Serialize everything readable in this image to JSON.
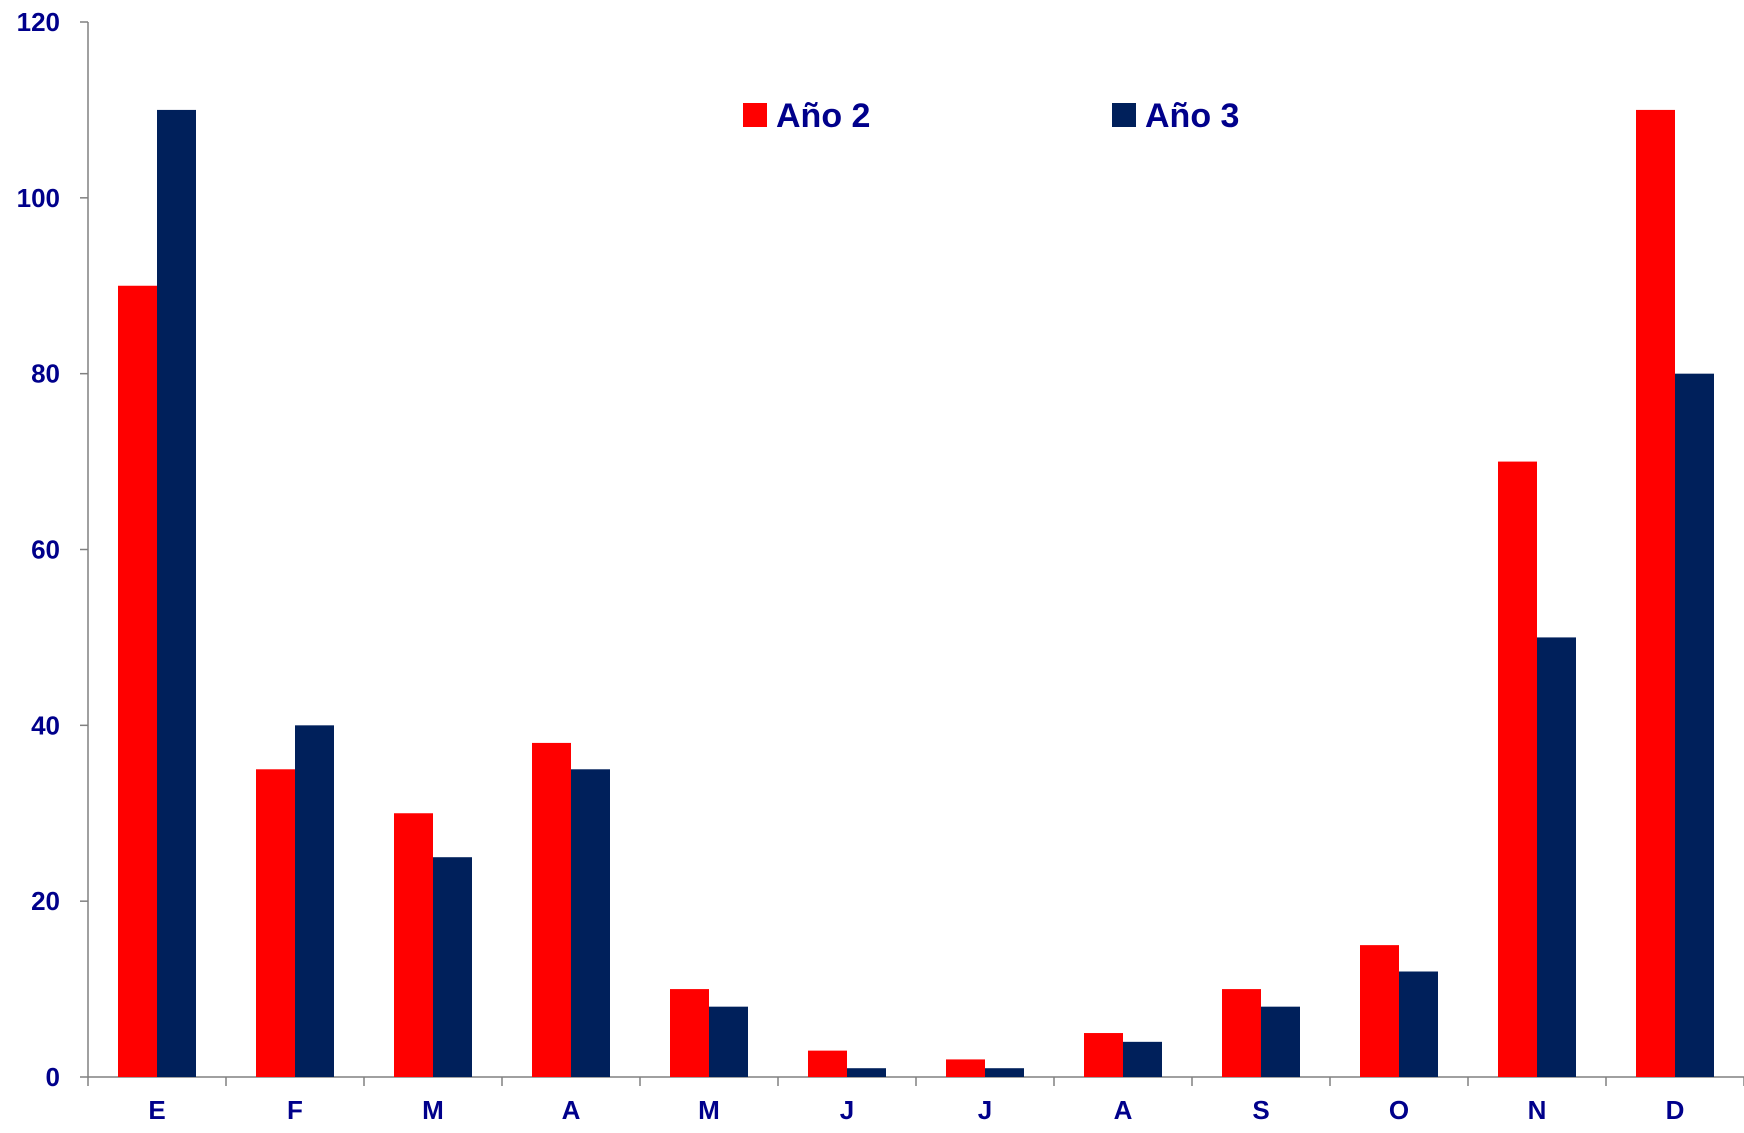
{
  "chart_data": {
    "type": "bar",
    "categories": [
      "E",
      "F",
      "M",
      "A",
      "M",
      "J",
      "J",
      "A",
      "S",
      "O",
      "N",
      "D"
    ],
    "series": [
      {
        "name": "Año 2",
        "color": "#FF0000",
        "values": [
          90,
          35,
          30,
          38,
          10,
          3,
          2,
          5,
          10,
          15,
          70,
          110
        ]
      },
      {
        "name": "Año 3",
        "color": "#00205B",
        "values": [
          110,
          40,
          25,
          35,
          8,
          1,
          1,
          4,
          8,
          12,
          50,
          80
        ]
      }
    ],
    "yticks": [
      0,
      20,
      40,
      60,
      80,
      100,
      120
    ],
    "ylim": [
      0,
      120
    ],
    "title": "",
    "xlabel": "",
    "ylabel": "",
    "grid": false,
    "legend_position": "top-center",
    "axis_color": "#808080",
    "label_color": "#00008B"
  }
}
